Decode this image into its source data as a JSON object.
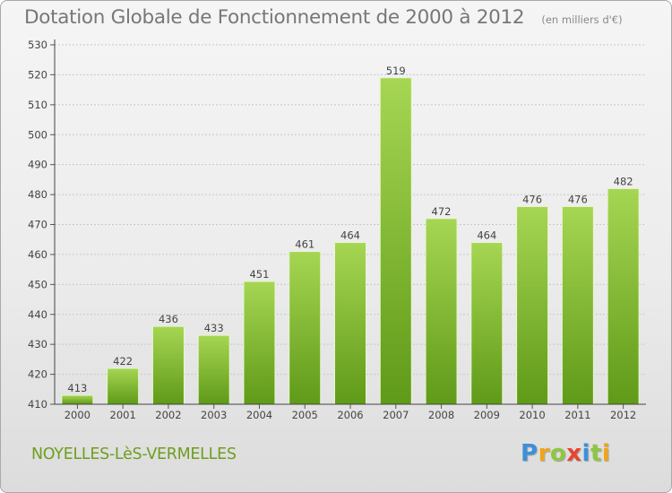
{
  "header": {
    "title": "Dotation Globale de Fonctionnement de 2000 à 2012",
    "subtitle": "(en milliers d'€)"
  },
  "footer": {
    "commune": "NOYELLES-LèS-VERMELLES",
    "logo": "Proxiti"
  },
  "colors": {
    "bar_light": "#a6d653",
    "bar_dark": "#5f9a18",
    "commune_text": "#6e9e1e",
    "logo_letters": [
      "#3f8fd8",
      "#f0a419",
      "#8ec63f",
      "#e8442e",
      "#3f8fd8",
      "#8ec63f",
      "#f0a419"
    ]
  },
  "chart_data": {
    "type": "bar",
    "title": "Dotation Globale de Fonctionnement de 2000 à 2012",
    "subtitle": "(en milliers d'€)",
    "xlabel": "",
    "ylabel": "",
    "categories": [
      "2000",
      "2001",
      "2002",
      "2003",
      "2004",
      "2005",
      "2006",
      "2007",
      "2008",
      "2009",
      "2010",
      "2011",
      "2012"
    ],
    "values": [
      413,
      422,
      436,
      433,
      451,
      461,
      464,
      519,
      472,
      464,
      476,
      476,
      482
    ],
    "ylim": [
      410,
      530
    ],
    "yticks": [
      410,
      420,
      430,
      440,
      450,
      460,
      470,
      480,
      490,
      500,
      510,
      520,
      530
    ],
    "grid": true,
    "legend": "none",
    "data_labels": true
  }
}
